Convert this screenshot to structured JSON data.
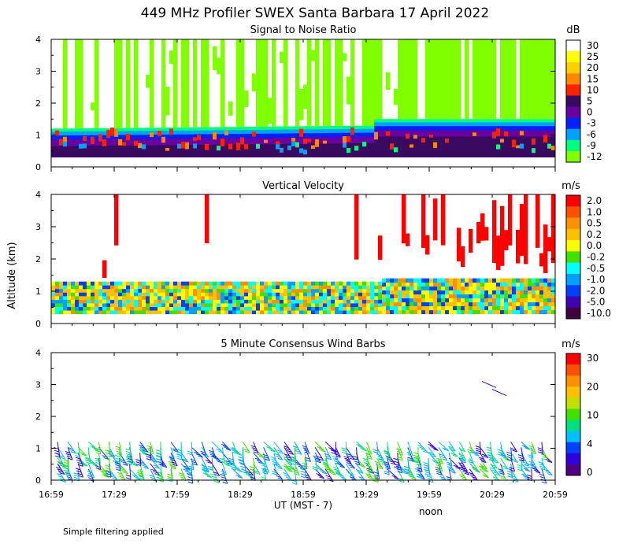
{
  "figure": {
    "title": "449 MHz Profiler SWEX Santa Barbara 17 April 2022",
    "footnote": "Simple filtering applied",
    "xlabel": "UT  (MST - 7)",
    "ylabel": "Altitude (km)",
    "noon_label": "noon",
    "x_ticks": [
      "16:59",
      "17:29",
      "17:59",
      "18:29",
      "18:59",
      "19:29",
      "19:59",
      "20:29",
      "20:59"
    ],
    "y_ticks": [
      "0",
      "1",
      "2",
      "3",
      "4"
    ]
  },
  "colors": {
    "blank": "#ffffff",
    "axis": "#000000"
  },
  "chart_data": [
    {
      "type": "heatmap",
      "title": "Signal to Noise Ratio",
      "unit": "dB",
      "xlabel": "UT  (MST - 7)",
      "ylabel": "Altitude (km)",
      "x_range": [
        "16:59",
        "20:59"
      ],
      "ylim": [
        0,
        4
      ],
      "colorbar": {
        "labels": [
          "30",
          "25",
          "20",
          "15",
          "10",
          "5",
          "0",
          "-3",
          "-6",
          "-9",
          "-12"
        ],
        "colors": [
          "#ffffff",
          "#ffff00",
          "#ffd000",
          "#ff8800",
          "#ff2000",
          "#3a0a60",
          "#6a00a0",
          "#0020ff",
          "#00a0ff",
          "#00ff80",
          "#80ff00"
        ]
      },
      "features": {
        "boundary_layer_top_km": 1.1,
        "boundary_layer_top_after_19_30_km": 1.4
      }
    },
    {
      "type": "heatmap",
      "title": "Vertical Velocity",
      "unit": "m/s",
      "xlabel": "UT  (MST - 7)",
      "ylabel": "Altitude (km)",
      "x_range": [
        "16:59",
        "20:59"
      ],
      "ylim": [
        0,
        4
      ],
      "colorbar": {
        "labels": [
          "2.0",
          "1.0",
          "0.5",
          "0.2",
          "0.0",
          "-0.2",
          "-0.5",
          "-1.0",
          "-2.0",
          "-5.0",
          "-10.0"
        ],
        "colors": [
          "#ff0000",
          "#ff5000",
          "#ff9000",
          "#ffc000",
          "#ffff00",
          "#40e000",
          "#00ffff",
          "#00a0ff",
          "#0040ff",
          "#4000b0",
          "#400040"
        ]
      },
      "features": {
        "data_top_km": 1.3,
        "data_top_after_19_30_km": 1.4
      }
    },
    {
      "type": "scatter",
      "title": "5 Minute Consensus Wind Barbs",
      "unit": "m/s",
      "xlabel": "UT  (MST - 7)",
      "ylabel": "Altitude (km)",
      "x_range": [
        "16:59",
        "20:59"
      ],
      "ylim": [
        0,
        4
      ],
      "colorbar": {
        "labels": [
          "30",
          "20",
          "10",
          "4",
          "0"
        ],
        "segment_colors": [
          "#ff0000",
          "#ff5000",
          "#ff9000",
          "#ffc000",
          "#c0e000",
          "#40e000",
          "#00e080",
          "#00c0ff",
          "#0040ff",
          "#3000e0",
          "#500080"
        ]
      }
    }
  ]
}
